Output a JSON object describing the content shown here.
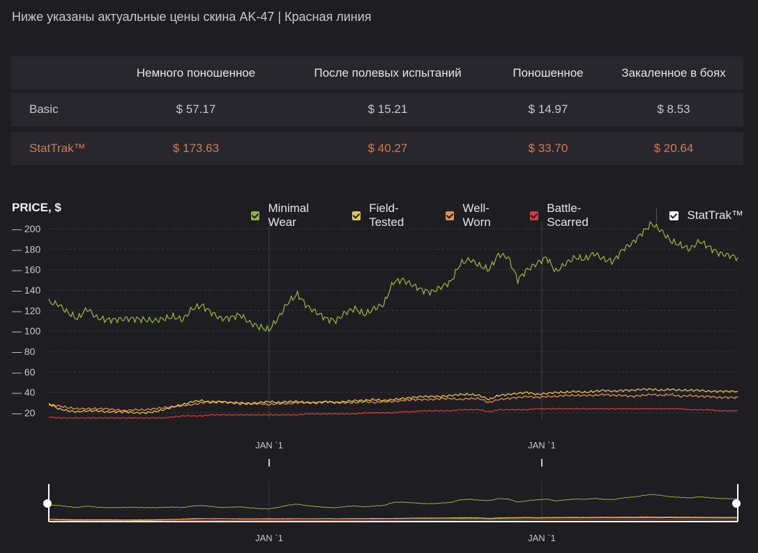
{
  "page": {
    "title": "Ниже указаны актуальные цены скина AK-47 | Красная линия"
  },
  "table": {
    "headers": [
      "",
      "Немного поношенное",
      "После полевых испытаний",
      "Поношенное",
      "Закаленное в боях"
    ],
    "rows": [
      {
        "label": "Basic",
        "values": [
          "$ 57.17",
          "$ 15.21",
          "$ 14.97",
          "$ 8.53"
        ]
      },
      {
        "label": "StatTrak™",
        "values": [
          "$ 173.63",
          "$ 40.27",
          "$ 33.70",
          "$ 20.64"
        ]
      }
    ]
  },
  "chart_data": {
    "type": "line",
    "ylabel": "PRICE, $",
    "ylim": [
      10,
      210
    ],
    "yticks": [
      20,
      40,
      60,
      80,
      100,
      120,
      140,
      160,
      180,
      200
    ],
    "yticks_labels": [
      "— 20",
      "— 40",
      "— 60",
      "— 80",
      "— 100",
      "— 120",
      "— 140",
      "— 160",
      "— 180",
      "— 200"
    ],
    "xlabels": [
      "JAN `1",
      "JAN `1"
    ],
    "grid": true,
    "legend_position": "top",
    "legend": [
      {
        "name": "Minimal Wear",
        "color": "#8fb339",
        "checked": true
      },
      {
        "name": "Field-Tested",
        "color": "#e8c54a",
        "checked": true
      },
      {
        "name": "Well-Worn",
        "color": "#e8904a",
        "checked": true
      },
      {
        "name": "Battle-Scarred",
        "color": "#d63a3a",
        "checked": true
      },
      {
        "name": "StatTrak™",
        "color": "#ffffff",
        "checked": true
      }
    ],
    "series": [
      {
        "name": "Minimal Wear",
        "color": "#8fb339",
        "values": [
          128,
          126,
          118,
          112,
          122,
          113,
          111,
          111,
          112,
          112,
          111,
          110,
          112,
          114,
          111,
          122,
          125,
          118,
          112,
          113,
          116,
          108,
          104,
          101,
          113,
          128,
          136,
          124,
          118,
          112,
          110,
          118,
          122,
          116,
          122,
          126,
          148,
          150,
          145,
          140,
          138,
          143,
          148,
          166,
          170,
          164,
          160,
          175,
          172,
          150,
          160,
          166,
          172,
          158,
          166,
          172,
          170,
          176,
          170,
          168,
          180,
          186,
          196,
          205,
          198,
          188,
          184,
          180,
          188,
          182,
          176,
          174,
          172
        ]
      },
      {
        "name": "Field-Tested",
        "color": "#e8c54a",
        "values": [
          29,
          24,
          22,
          21,
          22,
          22,
          21,
          21,
          21,
          20,
          20,
          21,
          23,
          26,
          28,
          31,
          32,
          30,
          31,
          30,
          29,
          29,
          30,
          31,
          30,
          31,
          31,
          30,
          30,
          31,
          30,
          31,
          32,
          32,
          33,
          32,
          33,
          34,
          35,
          36,
          36,
          36,
          37,
          38,
          38,
          37,
          33,
          37,
          38,
          39,
          40,
          38,
          39,
          40,
          40,
          41,
          40,
          41,
          42,
          41,
          42,
          42,
          43,
          43,
          42,
          43,
          42,
          42,
          42,
          41,
          41,
          41,
          41
        ]
      },
      {
        "name": "Well-Worn",
        "color": "#e8904a",
        "values": [
          28,
          27,
          25,
          24,
          24,
          24,
          24,
          23,
          22,
          23,
          23,
          24,
          25,
          26,
          27,
          28,
          30,
          31,
          31,
          30,
          30,
          29,
          29,
          28,
          29,
          29,
          30,
          30,
          30,
          31,
          30,
          30,
          30,
          31,
          30,
          31,
          31,
          32,
          33,
          33,
          33,
          34,
          34,
          33,
          34,
          34,
          30,
          33,
          34,
          35,
          36,
          35,
          36,
          36,
          37,
          37,
          37,
          37,
          38,
          37,
          37,
          36,
          37,
          38,
          37,
          38,
          36,
          37,
          36,
          36,
          35,
          35,
          35
        ]
      },
      {
        "name": "Battle-Scarred",
        "color": "#d63a3a",
        "values": [
          16,
          15,
          15,
          15,
          15,
          15,
          15,
          15,
          15,
          15,
          15,
          15,
          15,
          16,
          17,
          17,
          17,
          18,
          18,
          18,
          18,
          18,
          18,
          18,
          18,
          18,
          18,
          19,
          19,
          19,
          19,
          19,
          19,
          20,
          20,
          20,
          20,
          21,
          21,
          22,
          22,
          22,
          22,
          23,
          23,
          23,
          21,
          23,
          23,
          23,
          23,
          24,
          24,
          24,
          24,
          24,
          24,
          24,
          24,
          24,
          24,
          24,
          24,
          24,
          24,
          24,
          24,
          23,
          23,
          23,
          22,
          22,
          22
        ]
      }
    ]
  }
}
